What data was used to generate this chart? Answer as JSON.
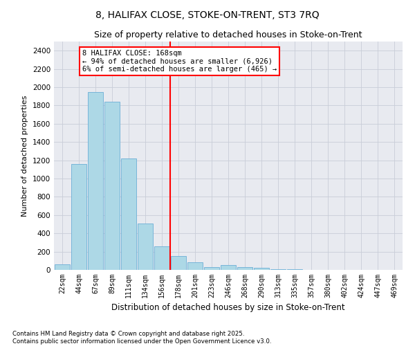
{
  "title": "8, HALIFAX CLOSE, STOKE-ON-TRENT, ST3 7RQ",
  "subtitle": "Size of property relative to detached houses in Stoke-on-Trent",
  "xlabel": "Distribution of detached houses by size in Stoke-on-Trent",
  "ylabel": "Number of detached properties",
  "categories": [
    "22sqm",
    "44sqm",
    "67sqm",
    "89sqm",
    "111sqm",
    "134sqm",
    "156sqm",
    "178sqm",
    "201sqm",
    "223sqm",
    "246sqm",
    "268sqm",
    "290sqm",
    "313sqm",
    "335sqm",
    "357sqm",
    "380sqm",
    "402sqm",
    "424sqm",
    "447sqm",
    "469sqm"
  ],
  "values": [
    60,
    1160,
    1950,
    1840,
    1220,
    510,
    260,
    155,
    80,
    30,
    55,
    30,
    20,
    10,
    5,
    2,
    2,
    1,
    1,
    1,
    1
  ],
  "bar_color": "#add8e6",
  "bar_edge_color": "#6baed6",
  "vline_x": 6.5,
  "vline_color": "red",
  "annotation_text": "8 HALIFAX CLOSE: 168sqm\n← 94% of detached houses are smaller (6,926)\n6% of semi-detached houses are larger (465) →",
  "annotation_box_color": "white",
  "annotation_box_edge": "red",
  "ylim": [
    0,
    2500
  ],
  "yticks": [
    0,
    200,
    400,
    600,
    800,
    1000,
    1200,
    1400,
    1600,
    1800,
    2000,
    2200,
    2400
  ],
  "grid_color": "#c8cdd8",
  "background_color": "#e8eaf0",
  "footer_line1": "Contains HM Land Registry data © Crown copyright and database right 2025.",
  "footer_line2": "Contains public sector information licensed under the Open Government Licence v3.0.",
  "title_fontsize": 10,
  "subtitle_fontsize": 9,
  "annot_fontsize": 7.5
}
